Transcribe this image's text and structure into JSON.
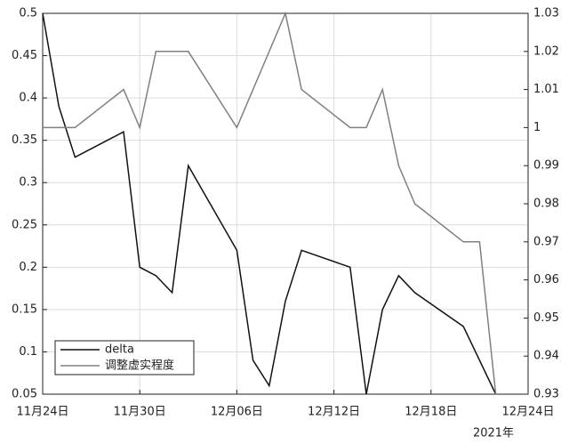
{
  "chart_data": {
    "type": "line",
    "xlabel": "2021年",
    "xlim": [
      "2021-11-24",
      "2021-12-24"
    ],
    "xticks": [
      {
        "value": "2021-11-24",
        "label": "11月24日"
      },
      {
        "value": "2021-11-30",
        "label": "11月30日"
      },
      {
        "value": "2021-12-06",
        "label": "12月06日"
      },
      {
        "value": "2021-12-12",
        "label": "12月12日"
      },
      {
        "value": "2021-12-18",
        "label": "12月18日"
      },
      {
        "value": "2021-12-24",
        "label": "12月24日"
      }
    ],
    "ylim": [
      0.05,
      0.5
    ],
    "yticks": [
      0.05,
      0.1,
      0.15,
      0.2,
      0.25,
      0.3,
      0.35,
      0.4,
      0.45,
      0.5
    ],
    "y2lim": [
      0.93,
      1.03
    ],
    "y2ticks": [
      0.93,
      0.94,
      0.95,
      0.96,
      0.97,
      0.98,
      0.99,
      1,
      1.01,
      1.02,
      1.03
    ],
    "grid": true,
    "legend": "lower-left",
    "series": [
      {
        "name": "delta",
        "color": "#111111",
        "x": [
          "2021-11-24",
          "2021-11-25",
          "2021-11-26",
          "2021-11-29",
          "2021-11-30",
          "2021-12-01",
          "2021-12-02",
          "2021-12-03",
          "2021-12-06",
          "2021-12-07",
          "2021-12-08",
          "2021-12-09",
          "2021-12-10",
          "2021-12-13",
          "2021-12-14",
          "2021-12-15",
          "2021-12-16",
          "2021-12-17",
          "2021-12-20",
          "2021-12-22"
        ],
        "values": [
          0.5,
          0.39,
          0.33,
          0.36,
          0.2,
          0.19,
          0.17,
          0.32,
          0.22,
          0.09,
          0.06,
          0.16,
          0.22,
          0.2,
          0.05,
          0.15,
          0.19,
          0.17,
          0.13,
          0.05
        ]
      },
      {
        "name": "调整虚实程度",
        "color": "#808080",
        "axis": "y2",
        "x": [
          "2021-11-24",
          "2021-11-26",
          "2021-11-29",
          "2021-11-30",
          "2021-12-01",
          "2021-12-03",
          "2021-12-06",
          "2021-12-09",
          "2021-12-10",
          "2021-12-13",
          "2021-12-14",
          "2021-12-15",
          "2021-12-16",
          "2021-12-17",
          "2021-12-20",
          "2021-12-21",
          "2021-12-22"
        ],
        "values": [
          1,
          1,
          1.01,
          1,
          1.02,
          1.02,
          1,
          1.03,
          1.01,
          1,
          1,
          1.01,
          0.99,
          0.98,
          0.97,
          0.97,
          0.93
        ]
      }
    ]
  }
}
